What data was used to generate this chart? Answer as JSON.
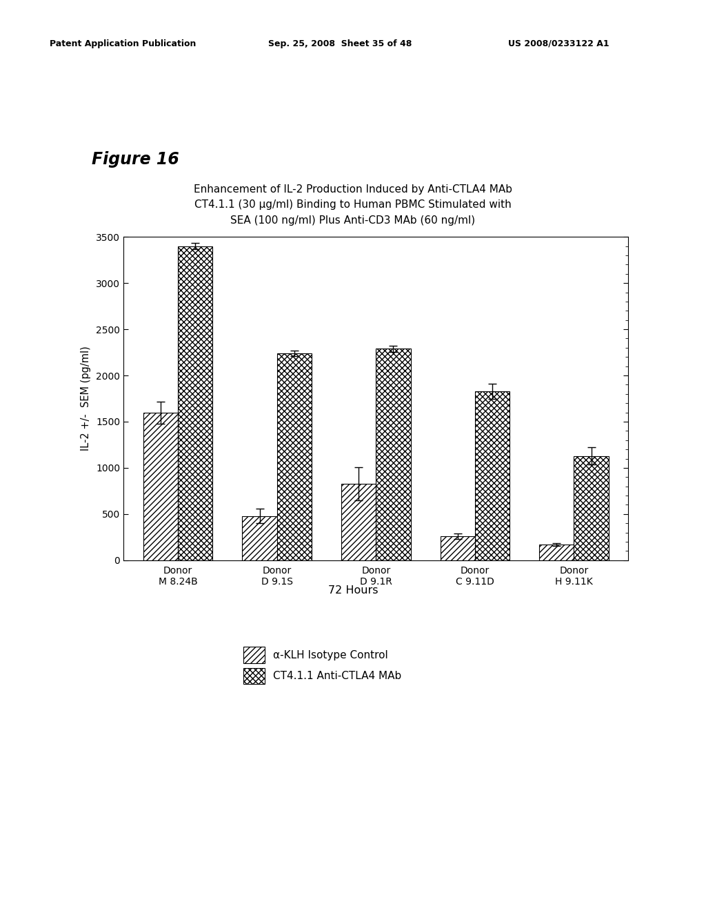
{
  "header_left": "Patent Application Publication",
  "header_mid": "Sep. 25, 2008  Sheet 35 of 48",
  "header_right": "US 2008/0233122 A1",
  "figure_label": "Figure 16",
  "title_line1": "Enhancement of IL-2 Production Induced by Anti-CTLA4 MAb",
  "title_line2": "CT4.1.1 (30 μg/ml) Binding to Human PBMC Stimulated with",
  "title_line3": "SEA (100 ng/ml) Plus Anti-CD3 MAb (60 ng/ml)",
  "xlabel": "72 Hours",
  "ylabel": "IL-2 +/-  SEM (pg/ml)",
  "categories": [
    "Donor\nM 8.24B",
    "Donor\nD 9.1S",
    "Donor\nD 9.1R",
    "Donor\nC 9.11D",
    "Donor\nH 9.11K"
  ],
  "control_values": [
    1600,
    480,
    830,
    260,
    170
  ],
  "control_errors": [
    120,
    80,
    180,
    30,
    15
  ],
  "treatment_values": [
    3400,
    2240,
    2290,
    1830,
    1130
  ],
  "treatment_errors": [
    35,
    30,
    35,
    80,
    90
  ],
  "ylim": [
    0,
    3500
  ],
  "yticks": [
    0,
    500,
    1000,
    1500,
    2000,
    2500,
    3000,
    3500
  ],
  "legend_labels": [
    "α-KLH Isotype Control",
    "CT4.1.1 Anti-CTLA4 MAb"
  ],
  "hatch_control": "////",
  "hatch_treatment": "xxxx",
  "bar_width": 0.35
}
